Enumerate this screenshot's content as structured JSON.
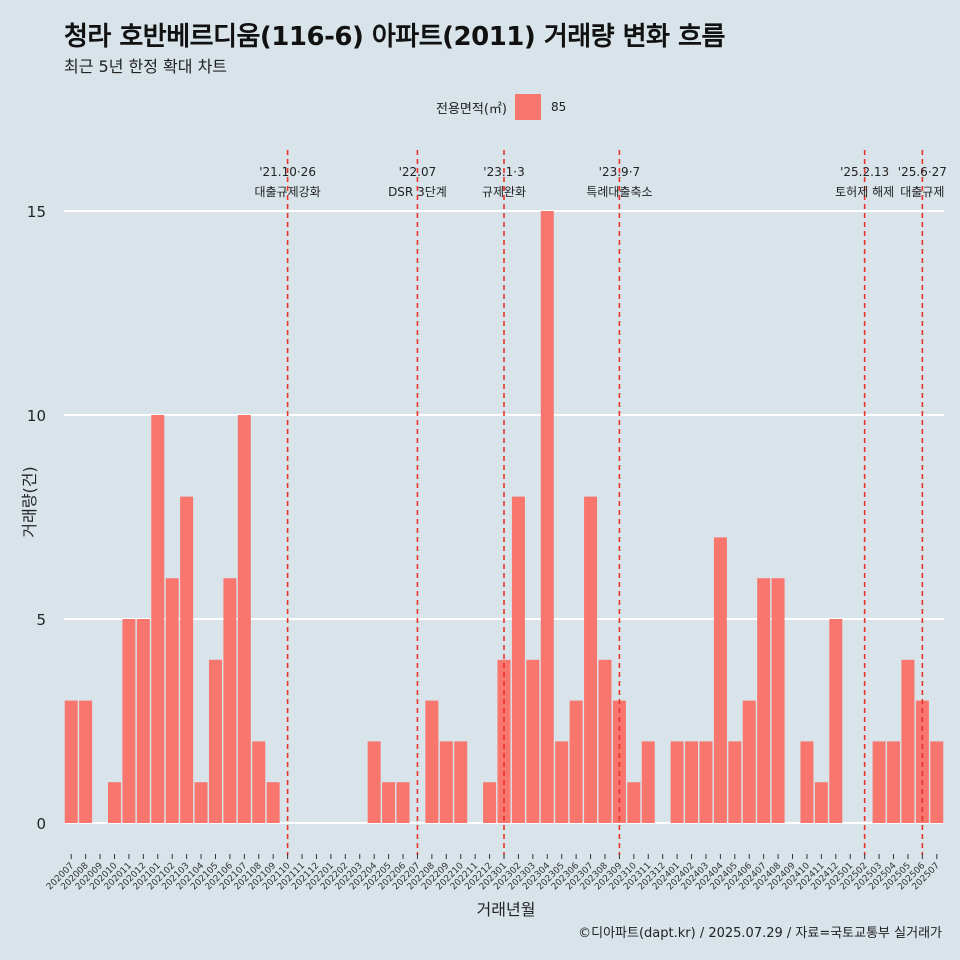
{
  "header": {
    "title": "청라 호반베르디움(116-6) 아파트(2011) 거래량 변화 흐름",
    "subtitle": "최근 5년 한정 확대 차트"
  },
  "legend": {
    "title": "전용면적(㎡)",
    "items": [
      {
        "label": "85",
        "color": "#f8766d"
      }
    ]
  },
  "caption": "©디아파트(dapt.kr) / 2025.07.29 / 자료=국토교통부 실거래가",
  "chart_data": {
    "type": "bar",
    "title": "청라 호반베르디움(116-6) 아파트(2011) 거래량 변화 흐름",
    "subtitle": "최근 5년 한정 확대 차트",
    "xlabel": "거래년월",
    "ylabel": "거래량(건)",
    "ylim": [
      0,
      16.5
    ],
    "yticks": [
      0,
      5,
      10,
      15
    ],
    "grid": true,
    "legend_position": "top",
    "categories": [
      "202007",
      "202008",
      "202009",
      "202010",
      "202011",
      "202012",
      "202101",
      "202102",
      "202103",
      "202104",
      "202105",
      "202106",
      "202107",
      "202108",
      "202109",
      "202110",
      "202111",
      "202112",
      "202201",
      "202202",
      "202203",
      "202204",
      "202205",
      "202206",
      "202207",
      "202208",
      "202209",
      "202210",
      "202211",
      "202212",
      "202301",
      "202302",
      "202303",
      "202304",
      "202305",
      "202306",
      "202307",
      "202308",
      "202309",
      "202310",
      "202311",
      "202312",
      "202401",
      "202402",
      "202403",
      "202404",
      "202405",
      "202406",
      "202407",
      "202408",
      "202409",
      "202410",
      "202411",
      "202412",
      "202501",
      "202502",
      "202503",
      "202504",
      "202505",
      "202506",
      "202507"
    ],
    "series": [
      {
        "name": "85",
        "color": "#f8766d",
        "values": [
          3,
          3,
          0,
          1,
          5,
          5,
          10,
          6,
          8,
          1,
          4,
          6,
          10,
          2,
          1,
          0,
          0,
          0,
          0,
          0,
          0,
          2,
          1,
          1,
          0,
          3,
          2,
          2,
          0,
          1,
          4,
          8,
          4,
          15,
          2,
          3,
          8,
          4,
          3,
          1,
          2,
          0,
          2,
          2,
          2,
          7,
          2,
          3,
          6,
          6,
          0,
          2,
          1,
          5,
          0,
          0,
          2,
          2,
          4,
          3,
          2
        ]
      }
    ],
    "annotations": [
      {
        "at": "202110",
        "date": "'21.10·26",
        "label": "대출규제강화",
        "offset": 0.0
      },
      {
        "at": "202207",
        "date": "'22.07",
        "label": "DSR 3단계",
        "offset": 0.0
      },
      {
        "at": "202301",
        "date": "'23.1·3",
        "label": "규제완화",
        "offset": 0.0
      },
      {
        "at": "202309",
        "date": "'23.9·7",
        "label": "특례대출축소",
        "offset": 0.0
      },
      {
        "at": "202502",
        "date": "'25.2.13",
        "label": "토허제 해제",
        "offset": 0.0
      },
      {
        "at": "202506",
        "date": "'25.6·27",
        "label": "대출규제",
        "offset": 0.0
      }
    ]
  }
}
